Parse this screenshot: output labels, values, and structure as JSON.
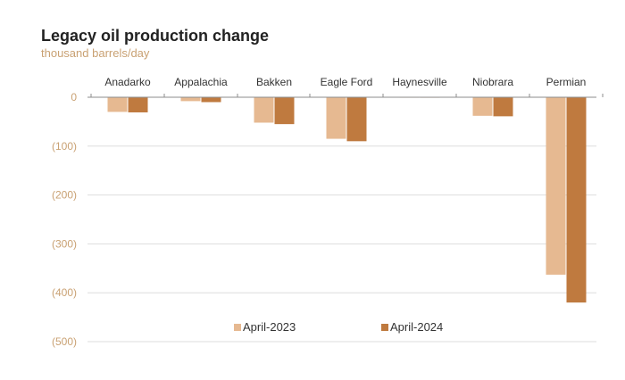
{
  "colors": {
    "april_2023": "#e6b991",
    "april_2024": "#bf7a3f",
    "tick_text": "#c9a173",
    "grid": "#dddddd",
    "axis": "#8c8c8c"
  },
  "chart_data": {
    "type": "bar",
    "title": "Legacy oil production change",
    "subtitle": "thousand barrels/day",
    "categories": [
      "Anadarko",
      "Appalachia",
      "Bakken",
      "Eagle Ford",
      "Haynesville",
      "Niobrara",
      "Permian"
    ],
    "series": [
      {
        "name": "April-2023",
        "values": [
          -30,
          -8,
          -52,
          -85,
          -1,
          -38,
          -363
        ]
      },
      {
        "name": "April-2024",
        "values": [
          -31,
          -10,
          -55,
          -90,
          -1,
          -39,
          -420
        ]
      }
    ],
    "ylim": [
      -500,
      0
    ],
    "yticks": [
      0,
      -100,
      -200,
      -300,
      -400,
      -500
    ],
    "ytick_labels": [
      "0",
      "(100)",
      "(200)",
      "(300)",
      "(400)",
      "(500)"
    ],
    "xlabel": "",
    "ylabel": "",
    "grid": true,
    "legend_position": "bottom-center"
  }
}
